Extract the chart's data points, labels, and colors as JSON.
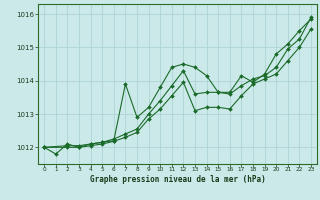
{
  "title": "Graphe pression niveau de la mer (hPa)",
  "bg_color": "#cce9e9",
  "grid_color": "#aed4d4",
  "line_color": "#1a6b2a",
  "xlim": [
    -0.5,
    23.5
  ],
  "ylim": [
    1011.5,
    1016.3
  ],
  "yticks": [
    1012,
    1013,
    1014,
    1015,
    1016
  ],
  "xticks": [
    0,
    1,
    2,
    3,
    4,
    5,
    6,
    7,
    8,
    9,
    10,
    11,
    12,
    13,
    14,
    15,
    16,
    17,
    18,
    19,
    20,
    21,
    22,
    23
  ],
  "line1": {
    "x": [
      0,
      1,
      2,
      3,
      4,
      5,
      6,
      7,
      8,
      9,
      10,
      11,
      12,
      13,
      14,
      15,
      16,
      17,
      18,
      19,
      20,
      21,
      22,
      23
    ],
    "y": [
      1012.0,
      1011.8,
      1012.1,
      1012.0,
      1012.1,
      1012.15,
      1012.2,
      1013.9,
      1012.9,
      1013.2,
      1013.8,
      1014.4,
      1014.5,
      1014.4,
      1014.15,
      1013.65,
      1013.65,
      1014.15,
      1013.95,
      1014.2,
      1014.8,
      1015.1,
      1015.5,
      1015.85
    ]
  },
  "line2": {
    "x": [
      0,
      2,
      3,
      4,
      5,
      6,
      7,
      8,
      9,
      10,
      11,
      12,
      13,
      14,
      15,
      16,
      17,
      18,
      19,
      20,
      21,
      22,
      23
    ],
    "y": [
      1012.0,
      1012.05,
      1012.05,
      1012.1,
      1012.15,
      1012.25,
      1012.4,
      1012.55,
      1013.0,
      1013.4,
      1013.85,
      1014.3,
      1013.6,
      1013.65,
      1013.65,
      1013.6,
      1013.85,
      1014.05,
      1014.15,
      1014.4,
      1014.95,
      1015.25,
      1015.9
    ],
    "smooth": true
  },
  "line3": {
    "x": [
      0,
      2,
      3,
      4,
      5,
      6,
      7,
      8,
      9,
      10,
      11,
      12,
      13,
      14,
      15,
      16,
      17,
      18,
      19,
      20,
      21,
      22,
      23
    ],
    "y": [
      1012.0,
      1012.0,
      1012.0,
      1012.05,
      1012.1,
      1012.18,
      1012.3,
      1012.45,
      1012.85,
      1013.15,
      1013.55,
      1013.95,
      1013.1,
      1013.2,
      1013.2,
      1013.15,
      1013.55,
      1013.9,
      1014.05,
      1014.2,
      1014.6,
      1015.0,
      1015.55
    ],
    "smooth": true
  }
}
